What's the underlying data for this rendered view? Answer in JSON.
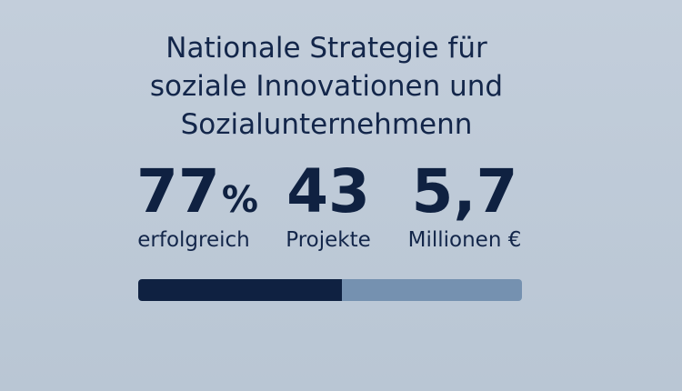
{
  "title": {
    "line1": "Nationale Strategie für",
    "line2": "soziale Innovationen und",
    "line3": "Sozialunternehmenn"
  },
  "stats": [
    {
      "value": "77",
      "unit": "%",
      "label": "erfolgreich"
    },
    {
      "value": "43",
      "unit": "",
      "label": "Projekte"
    },
    {
      "value": "5,7",
      "unit": "",
      "label": "Millionen €"
    }
  ],
  "progress": {
    "fraction": 0.53,
    "fill_color": "#0f2141",
    "track_color": "#7591b0"
  }
}
